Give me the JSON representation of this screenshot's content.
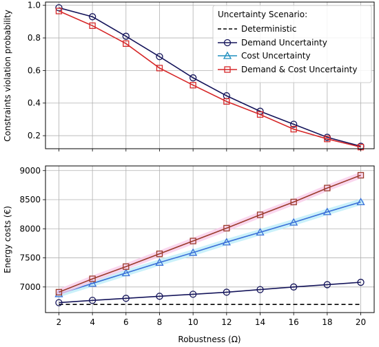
{
  "chart_data": [
    {
      "type": "line",
      "x": [
        2,
        4,
        6,
        8,
        10,
        12,
        14,
        16,
        18,
        20
      ],
      "xlabel": "",
      "ylabel": "Constraints violation probability",
      "ylim": [
        0.12,
        1.02
      ],
      "yticks": [
        0.2,
        0.4,
        0.6,
        0.8,
        1.0
      ],
      "ytick_labels": [
        "0.2",
        "0.4",
        "0.6",
        "0.8",
        "1.0"
      ],
      "grid": true,
      "legend": {
        "title": "Uncertainty Scenario:",
        "placement": "top-right",
        "entries": [
          "Deterministic",
          "Demand Uncertainty",
          "Cost Uncertainty",
          "Demand & Cost Uncertainty"
        ]
      },
      "series": [
        {
          "name": "Demand Uncertainty",
          "color": "#14145a",
          "marker": "circle",
          "values": [
            0.985,
            0.93,
            0.81,
            0.685,
            0.555,
            0.445,
            0.35,
            0.27,
            0.19,
            0.135
          ]
        },
        {
          "name": "Demand & Cost Uncertainty",
          "color": "#d62728",
          "marker": "square",
          "values": [
            0.965,
            0.875,
            0.765,
            0.615,
            0.51,
            0.41,
            0.33,
            0.24,
            0.18,
            0.13
          ]
        }
      ]
    },
    {
      "type": "line",
      "x": [
        2,
        4,
        6,
        8,
        10,
        12,
        14,
        16,
        18,
        20
      ],
      "xticks": [
        2,
        4,
        6,
        8,
        10,
        12,
        14,
        16,
        18,
        20
      ],
      "xtick_labels": [
        "2",
        "4",
        "6",
        "8",
        "10",
        "12",
        "14",
        "16",
        "18",
        "20"
      ],
      "xlabel": "Robustness (Ω)",
      "ylabel": "Energy costs (€)",
      "ylim": [
        6560,
        9080
      ],
      "yticks": [
        7000,
        7500,
        8000,
        8500,
        9000
      ],
      "ytick_labels": [
        "7000",
        "7500",
        "8000",
        "8500",
        "9000"
      ],
      "grid": true,
      "series": [
        {
          "name": "Deterministic",
          "color": "#000000",
          "style": "dashed",
          "marker": "none",
          "values": [
            6700,
            6700,
            6700,
            6700,
            6700,
            6700,
            6700,
            6700,
            6700,
            6700
          ]
        },
        {
          "name": "Demand Uncertainty",
          "color": "#14145a",
          "marker": "circle",
          "values": [
            6730,
            6770,
            6805,
            6840,
            6875,
            6910,
            6955,
            7000,
            7040,
            7080
          ]
        },
        {
          "name": "Cost Uncertainty",
          "color": "#3a6fd8",
          "marker": "triangle",
          "glow": "#b8ecf8",
          "values": [
            6880,
            7060,
            7240,
            7420,
            7590,
            7770,
            7940,
            8110,
            8290,
            8460
          ]
        },
        {
          "name": "Demand & Cost Uncertainty",
          "color": "#9a3a2a",
          "marker": "square",
          "glow": "#f8c8e8",
          "values": [
            6910,
            7140,
            7350,
            7570,
            7790,
            8010,
            8240,
            8460,
            8700,
            8920
          ]
        }
      ]
    }
  ]
}
